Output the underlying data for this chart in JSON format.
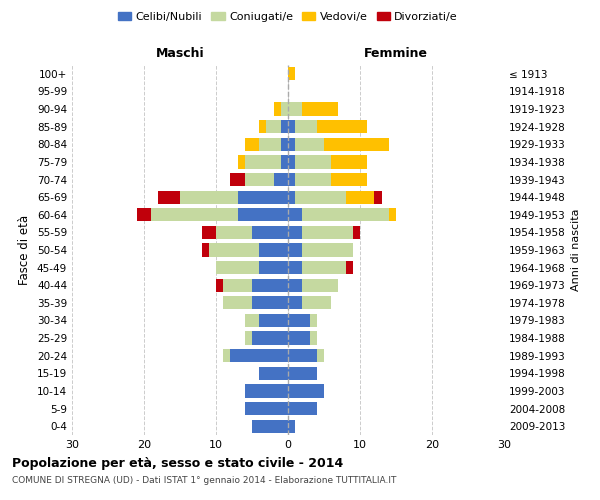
{
  "age_groups": [
    "0-4",
    "5-9",
    "10-14",
    "15-19",
    "20-24",
    "25-29",
    "30-34",
    "35-39",
    "40-44",
    "45-49",
    "50-54",
    "55-59",
    "60-64",
    "65-69",
    "70-74",
    "75-79",
    "80-84",
    "85-89",
    "90-94",
    "95-99",
    "100+"
  ],
  "birth_years": [
    "2009-2013",
    "2004-2008",
    "1999-2003",
    "1994-1998",
    "1989-1993",
    "1984-1988",
    "1979-1983",
    "1974-1978",
    "1969-1973",
    "1964-1968",
    "1959-1963",
    "1954-1958",
    "1949-1953",
    "1944-1948",
    "1939-1943",
    "1934-1938",
    "1929-1933",
    "1924-1928",
    "1919-1923",
    "1914-1918",
    "≤ 1913"
  ],
  "colors": {
    "celibi": "#4472C4",
    "coniugati": "#c5d9a0",
    "vedovi": "#ffc000",
    "divorziati": "#c0000b"
  },
  "maschi": {
    "celibi": [
      5,
      6,
      6,
      4,
      8,
      5,
      4,
      5,
      5,
      4,
      4,
      5,
      7,
      7,
      2,
      1,
      1,
      1,
      0,
      0,
      0
    ],
    "coniugati": [
      0,
      0,
      0,
      0,
      1,
      1,
      2,
      4,
      4,
      6,
      7,
      5,
      12,
      8,
      4,
      5,
      3,
      2,
      1,
      0,
      0
    ],
    "vedovi": [
      0,
      0,
      0,
      0,
      0,
      0,
      0,
      0,
      0,
      0,
      0,
      0,
      0,
      0,
      0,
      1,
      2,
      1,
      1,
      0,
      0
    ],
    "divorziati": [
      0,
      0,
      0,
      0,
      0,
      0,
      0,
      0,
      1,
      0,
      1,
      2,
      2,
      3,
      2,
      0,
      0,
      0,
      0,
      0,
      0
    ]
  },
  "femmine": {
    "celibi": [
      1,
      4,
      5,
      4,
      4,
      3,
      3,
      2,
      2,
      2,
      2,
      2,
      2,
      1,
      1,
      1,
      1,
      1,
      0,
      0,
      0
    ],
    "coniugati": [
      0,
      0,
      0,
      0,
      1,
      1,
      1,
      4,
      5,
      6,
      7,
      7,
      12,
      7,
      5,
      5,
      4,
      3,
      2,
      0,
      0
    ],
    "vedovi": [
      0,
      0,
      0,
      0,
      0,
      0,
      0,
      0,
      0,
      0,
      0,
      0,
      1,
      4,
      5,
      5,
      9,
      7,
      5,
      0,
      1
    ],
    "divorziati": [
      0,
      0,
      0,
      0,
      0,
      0,
      0,
      0,
      0,
      1,
      0,
      1,
      0,
      1,
      0,
      0,
      0,
      0,
      0,
      0,
      0
    ]
  },
  "xlim": 30,
  "title": "Popolazione per età, sesso e stato civile - 2014",
  "subtitle": "COMUNE DI STREGNA (UD) - Dati ISTAT 1° gennaio 2014 - Elaborazione TUTTITALIA.IT",
  "ylabel_left": "Fasce di età",
  "ylabel_right": "Anni di nascita",
  "xlabel_left": "Maschi",
  "xlabel_right": "Femmine",
  "legend_labels": [
    "Celibi/Nubili",
    "Coniugati/e",
    "Vedovi/e",
    "Divorziati/e"
  ],
  "background_color": "#ffffff",
  "grid_color": "#cccccc"
}
